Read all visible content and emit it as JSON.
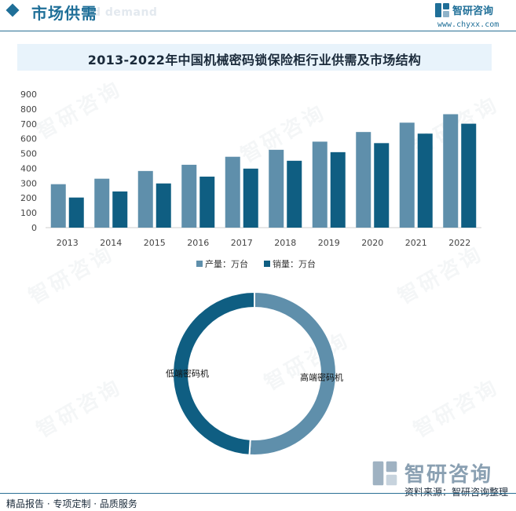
{
  "header": {
    "section_title": "市场供需",
    "ghost_text": "d demand",
    "logo_name": "智研咨询",
    "logo_url": "www.chyxx.com"
  },
  "footer": {
    "left_text": "精品报告 · 专项定制 · 品质服务",
    "source": "资料来源：智研咨询整理",
    "watermark_name": "智研咨询"
  },
  "watermark_text": "智研咨询",
  "colors": {
    "brand": "#1f6f98",
    "production": "#5f8fab",
    "sales": "#0f5e82",
    "axis_text": "#444444"
  },
  "chart_data": [
    {
      "type": "bar",
      "title": "2013-2022年中国机械密码锁保险柜行业供需及市场结构",
      "categories": [
        "2013",
        "2014",
        "2015",
        "2016",
        "2017",
        "2018",
        "2019",
        "2020",
        "2021",
        "2022"
      ],
      "series": [
        {
          "name": "产量：万台",
          "values": [
            293,
            330,
            382,
            424,
            478,
            525,
            580,
            645,
            708,
            765
          ]
        },
        {
          "name": "销量：万台",
          "values": [
            203,
            244,
            298,
            344,
            398,
            451,
            509,
            570,
            634,
            701
          ]
        }
      ],
      "ylim": [
        0,
        900
      ],
      "yticks": [
        0,
        100,
        200,
        300,
        400,
        500,
        600,
        700,
        800,
        900
      ],
      "grid": false,
      "legend": "bottom"
    },
    {
      "type": "pie",
      "subtype": "donut",
      "slices": [
        {
          "label": "高端密码机",
          "value": 51
        },
        {
          "label": "低端密码机",
          "value": 49
        }
      ]
    }
  ]
}
